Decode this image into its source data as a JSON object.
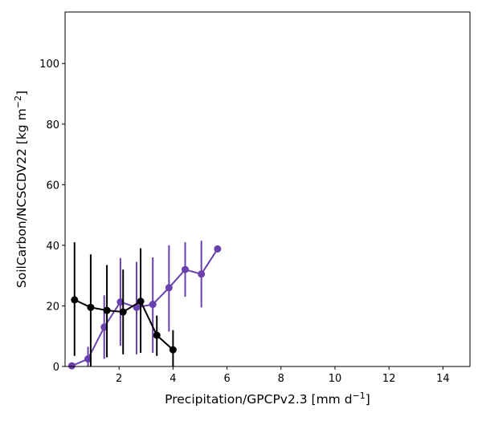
{
  "chart_data": {
    "type": "line",
    "xlabel": "Precipitation/GPCPv2.3 [mm d",
    "xlabel_sup": "−1",
    "xlabel_tail": "]",
    "ylabel": "SoilCarbon/NCSCDV22 [kg m",
    "ylabel_sup": "−2",
    "ylabel_tail": "]",
    "xlim": [
      0.0,
      15.0
    ],
    "ylim": [
      0,
      117
    ],
    "xticks": [
      2,
      4,
      6,
      8,
      10,
      12,
      14
    ],
    "yticks": [
      0,
      20,
      40,
      60,
      80,
      100
    ],
    "grid": false,
    "legend": "none",
    "series": [
      {
        "color": "#000000",
        "x": [
          0.35,
          0.95,
          1.55,
          2.15,
          2.8,
          3.4,
          4.0
        ],
        "y": [
          22.0,
          19.5,
          18.5,
          18.0,
          21.5,
          10.3,
          5.5
        ],
        "err_low": [
          18.5,
          19.5,
          15.5,
          14.0,
          17.0,
          6.8,
          5.5
        ],
        "err_high": [
          19.0,
          17.5,
          15.0,
          14.0,
          17.5,
          6.5,
          6.5
        ]
      },
      {
        "color": "#6a3fae",
        "x": [
          0.25,
          0.85,
          1.45,
          2.05,
          2.65,
          3.25,
          3.85,
          4.45,
          5.05,
          5.65
        ],
        "y": [
          0.2,
          2.5,
          13.0,
          21.3,
          19.5,
          20.5,
          26.0,
          32.0,
          30.5,
          38.8
        ],
        "err_low": [
          0.2,
          2.5,
          10.5,
          14.5,
          15.5,
          16.0,
          14.5,
          9.0,
          11.0,
          0
        ],
        "err_high": [
          0.0,
          4.0,
          10.5,
          14.5,
          15.0,
          15.5,
          14.0,
          9.0,
          11.0,
          0
        ]
      }
    ]
  }
}
